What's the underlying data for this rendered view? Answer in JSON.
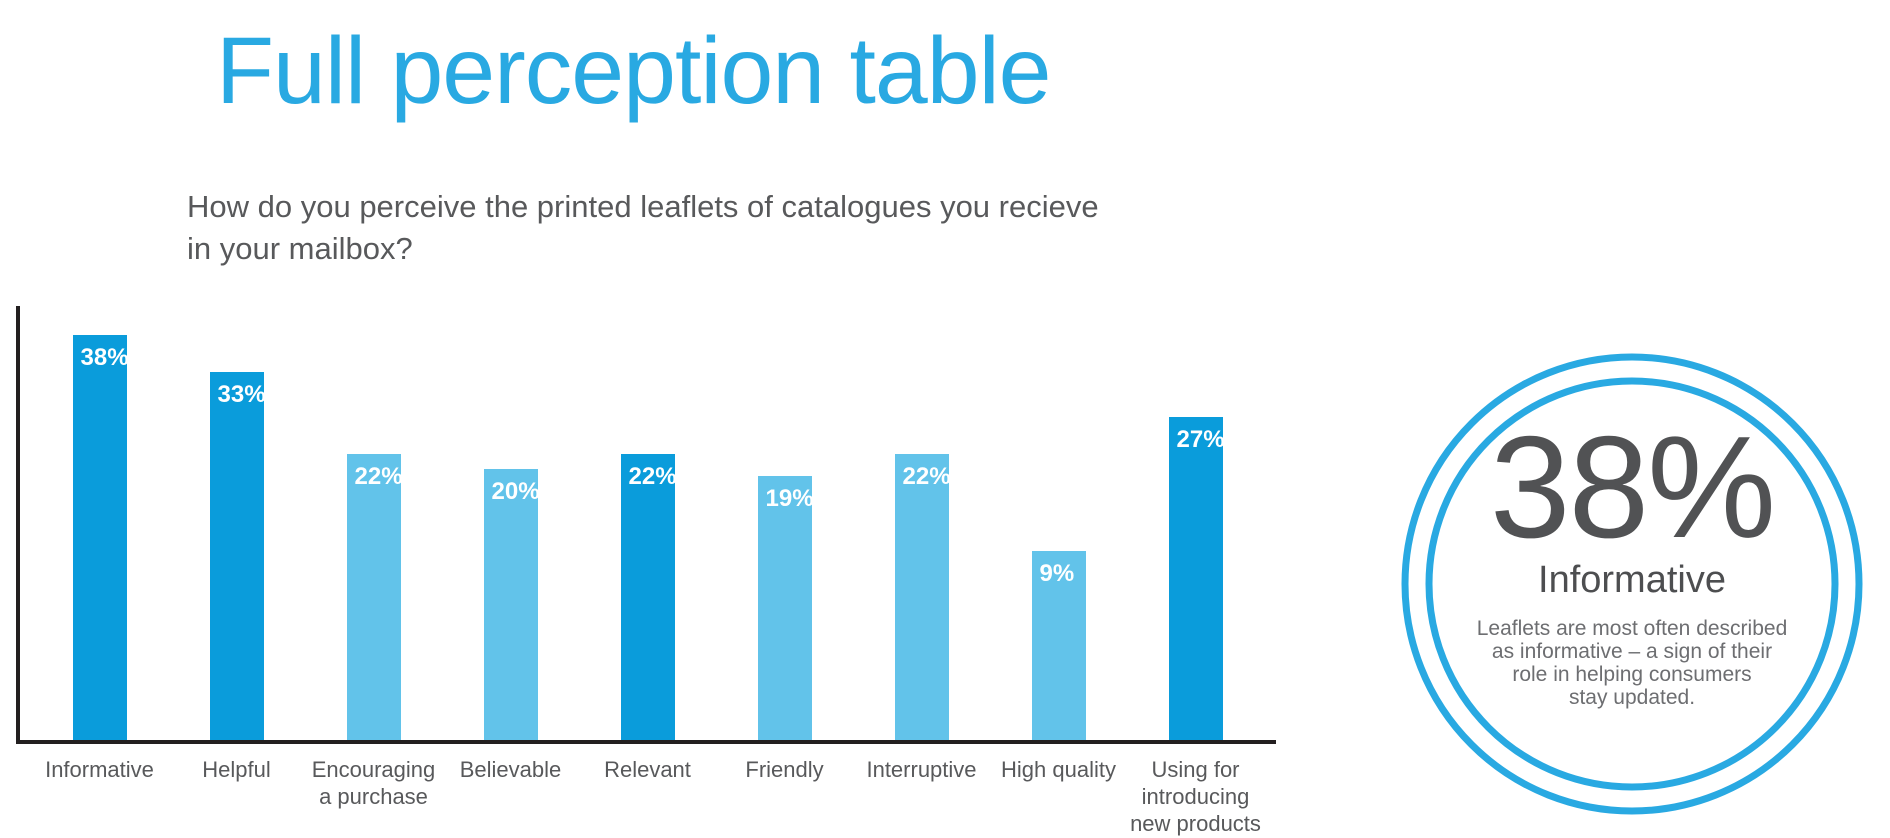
{
  "title": "Full perception table",
  "subtitle": "How do you perceive the printed leaflets of catalogues you recieve\nin your mailbox?",
  "colors": {
    "accent_blue": "#29A9E2",
    "bar_dark": "#0A9CDB",
    "bar_light": "#62C3EA",
    "axis": "#231F20",
    "text_gray": "#58595B",
    "stat_gray": "#515254",
    "desc_gray": "#6D6E71",
    "value_label": "#FFFFFF"
  },
  "chart_data": {
    "type": "bar",
    "title": "Full perception table",
    "question": "How do you perceive the printed leaflets of catalogues you recieve in your mailbox?",
    "categories": [
      "Informative",
      "Helpful",
      "Encouraging a purchase",
      "Believable",
      "Relevant",
      "Friendly",
      "Interruptive",
      "High quality",
      "Using for introducing new products"
    ],
    "values": [
      38,
      33,
      22,
      20,
      22,
      19,
      22,
      9,
      27
    ],
    "value_labels": [
      "38%",
      "33%",
      "22%",
      "20%",
      "22%",
      "19%",
      "22%",
      "9%",
      "27%"
    ],
    "emphasized": [
      true,
      true,
      false,
      false,
      true,
      false,
      false,
      false,
      true
    ],
    "xlabel": "",
    "ylabel": "",
    "ylim": [
      0,
      45
    ],
    "grid": false,
    "legend": null
  },
  "callout": {
    "stat": "38%",
    "stat_label": "Informative",
    "description": "Leaflets are most often described\nas informative – a sign of their\nrole in helping consumers\nstay updated."
  }
}
